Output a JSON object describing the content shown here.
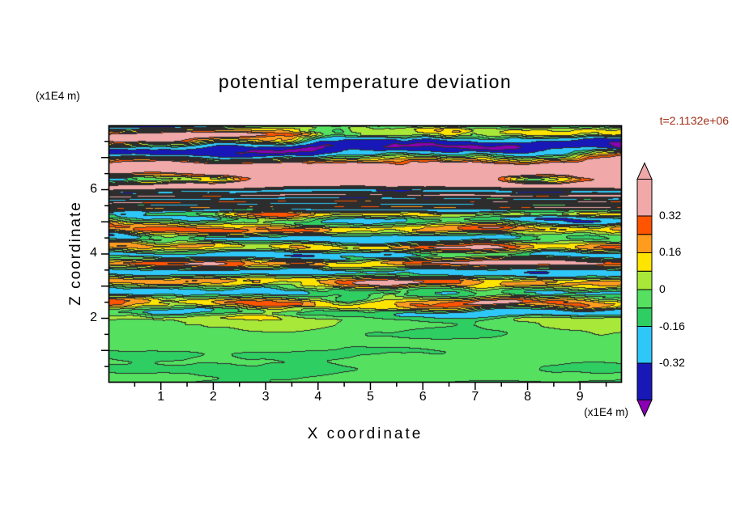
{
  "title": "potential temperature deviation",
  "annotations": {
    "time_label": "t=2.1132e+06",
    "time_label_color": "#a03018",
    "y_axis_unit": "(x1E4 m)",
    "x_axis_unit": "(x1E4 m)"
  },
  "axes": {
    "x": {
      "label": "X coordinate",
      "min": 0,
      "max": 9.8,
      "labeled_ticks": [
        1,
        2,
        3,
        4,
        5,
        6,
        7,
        8,
        9
      ],
      "minor_tick_step": 0.5
    },
    "y": {
      "label": "Z coordinate",
      "min": 0,
      "max": 8,
      "labeled_ticks": [
        2,
        4,
        6
      ],
      "minor_tick_step": 0.5
    }
  },
  "colorbar": {
    "tick_labels": [
      "0.32",
      "0.16",
      "0",
      "-0.16",
      "-0.32"
    ],
    "tick_values": [
      0.32,
      0.16,
      0,
      -0.16,
      -0.32
    ],
    "range": [
      -0.48,
      0.48
    ],
    "over_arrow_color": "#f0a8a8",
    "under_arrow_color": "#8a00b4"
  },
  "chart_data": {
    "type": "heatmap",
    "title": "potential temperature deviation",
    "xlabel": "X coordinate",
    "ylabel": "Z coordinate",
    "x_unit": "x1E4 m",
    "y_unit": "x1E4 m",
    "xlim": [
      0,
      9.8
    ],
    "ylim": [
      0,
      8
    ],
    "time_annotation": "t=2.1132e+06",
    "contour_levels": [
      -0.48,
      -0.32,
      -0.16,
      -0.08,
      0,
      0.08,
      0.16,
      0.24,
      0.32
    ],
    "band_colors": [
      "#8a00b4",
      "#1818b8",
      "#2ec8f8",
      "#2fce62",
      "#55e060",
      "#a8e838",
      "#ffe400",
      "#ff9c1e",
      "#ff5400",
      "#f0a8a8"
    ],
    "structure_notes": [
      "z below ~1.9 (x1E4 m): smooth light-green boundary layer, deviation near 0 to -0.1",
      "z ~2 to ~5.5: dense horizontally elongated turbulent stripes spanning the full range (navy/cyan to yellow/orange/red, with occasional pink and purple extremes)",
      "z ~5.5 to 8: broader gravity-wave bands; salmon-pink layers (>0.32) alternating with dark-purple/navy layers (<-0.32)",
      "very top edge: thin dark-purple band"
    ],
    "synthesis": {
      "seed": 20317,
      "boundary_layer_top": 1.85,
      "top_edge_darkening_start": 7.72,
      "zones": {
        "bottom": {
          "amp": 0.075,
          "base": -0.05,
          "stripe_w": 0.2,
          "turb_w": 1.45
        },
        "mid": {
          "amp": 0.34,
          "base": 0.03,
          "stripe_w": 0.62,
          "turb_w": 0.95,
          "stripe_wavelength": 0.58
        },
        "top": {
          "amp": 0.56,
          "base": 0.09,
          "stripe_w": 0.88,
          "turb_w": 0.58,
          "stripe_wavelength": 1.25
        },
        "top_transition_start": 5.2,
        "top_transition_len": 1.2
      }
    }
  }
}
